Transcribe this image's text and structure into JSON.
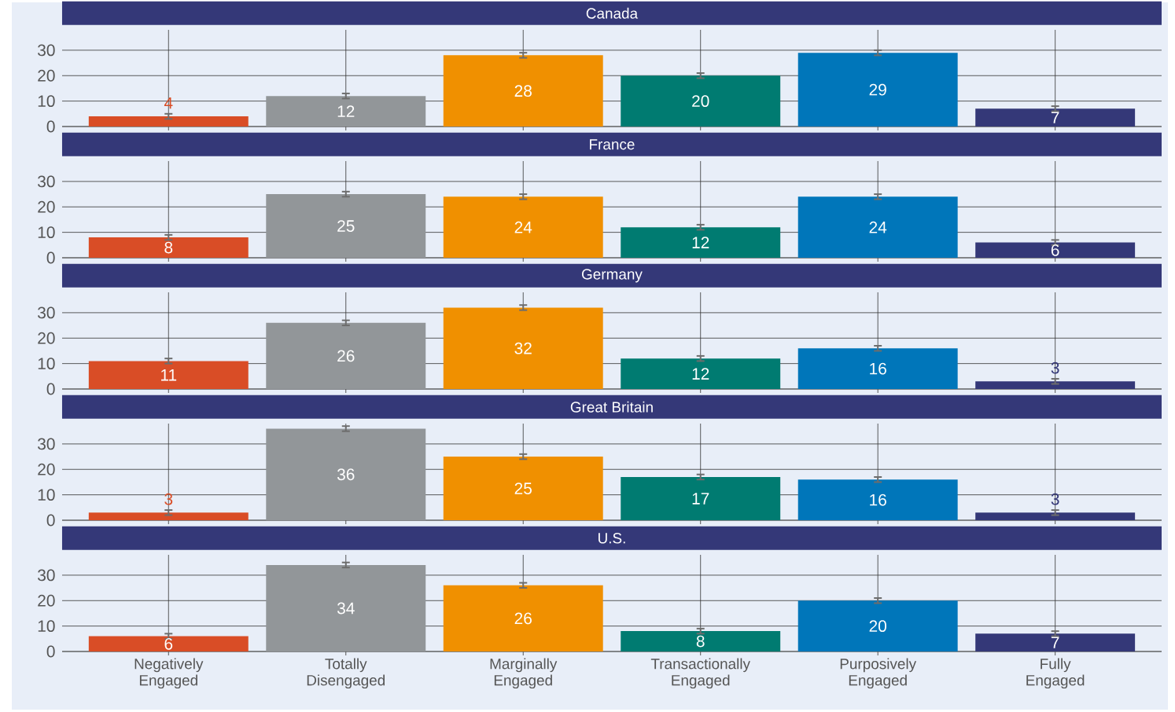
{
  "chart_data": [
    {
      "type": "bar",
      "title": "Canada",
      "categories": [
        null,
        null,
        null,
        null,
        null,
        null
      ],
      "values": [
        4,
        12,
        28,
        20,
        29,
        7
      ],
      "errors": [
        1,
        1,
        1,
        1,
        1,
        1
      ],
      "colors": [
        "#d94d26",
        "#929699",
        "#f09000",
        "#007b71",
        "#0076ba",
        "#343878"
      ],
      "data_labels": true,
      "ylim": [
        0,
        38
      ],
      "yticks": [
        0,
        10,
        20,
        30
      ],
      "grid": true,
      "tick_labels": "y"
    },
    {
      "type": "bar",
      "title": "France",
      "categories": [
        null,
        null,
        null,
        null,
        null,
        null
      ],
      "values": [
        8,
        25,
        24,
        12,
        24,
        6
      ],
      "errors": [
        1,
        1,
        1,
        1,
        1,
        1
      ],
      "colors": [
        "#d94d26",
        "#929699",
        "#f09000",
        "#007b71",
        "#0076ba",
        "#343878"
      ],
      "data_labels": true,
      "ylim": [
        0,
        38
      ],
      "yticks": [
        0,
        10,
        20,
        30
      ],
      "grid": true,
      "tick_labels": "y"
    },
    {
      "type": "bar",
      "title": "Germany",
      "categories": [
        null,
        null,
        null,
        null,
        null,
        null
      ],
      "values": [
        11,
        26,
        32,
        12,
        16,
        3
      ],
      "errors": [
        1,
        1,
        1,
        1,
        1,
        1
      ],
      "colors": [
        "#d94d26",
        "#929699",
        "#f09000",
        "#007b71",
        "#0076ba",
        "#343878"
      ],
      "data_labels": true,
      "ylim": [
        0,
        38
      ],
      "yticks": [
        0,
        10,
        20,
        30
      ],
      "grid": true,
      "tick_labels": "y"
    },
    {
      "type": "bar",
      "title": "Great Britain",
      "categories": [
        null,
        null,
        null,
        null,
        null,
        null
      ],
      "values": [
        3,
        36,
        25,
        17,
        16,
        3
      ],
      "errors": [
        1,
        1,
        1,
        1,
        1,
        1
      ],
      "colors": [
        "#d94d26",
        "#929699",
        "#f09000",
        "#007b71",
        "#0076ba",
        "#343878"
      ],
      "data_labels": true,
      "ylim": [
        0,
        38
      ],
      "yticks": [
        0,
        10,
        20,
        30
      ],
      "grid": true,
      "tick_labels": "y"
    },
    {
      "type": "bar",
      "title": "U.S.",
      "categories": [
        "Negatively Engaged",
        "Totally Disengaged",
        "Marginally Engaged",
        "Transactionally Engaged",
        "Purposively Engaged",
        "Fully Engaged"
      ],
      "values": [
        6,
        34,
        26,
        8,
        20,
        7
      ],
      "errors": [
        1,
        1,
        1,
        1,
        1,
        1
      ],
      "colors": [
        "#d94d26",
        "#929699",
        "#f09000",
        "#007b71",
        "#0076ba",
        "#343878"
      ],
      "data_labels": true,
      "ylim": [
        0,
        38
      ],
      "yticks": [
        0,
        10,
        20,
        30
      ],
      "grid": true
    }
  ]
}
